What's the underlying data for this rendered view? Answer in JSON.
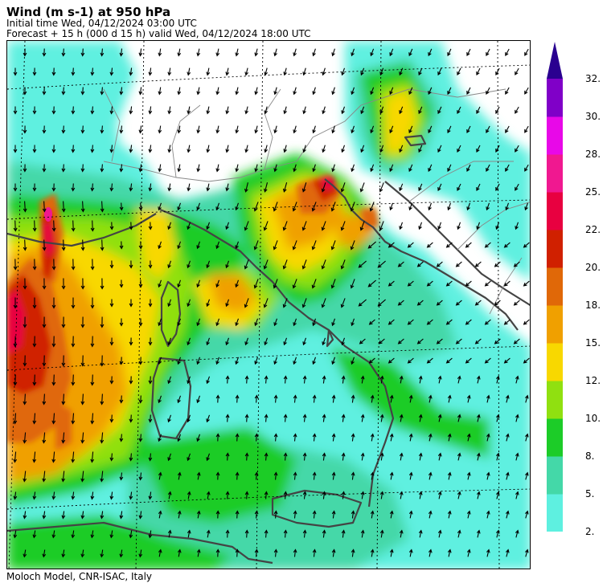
{
  "header": {
    "title": "Wind (m s-1) at 950 hPa",
    "initial_time": "Initial time  Wed, 04/12/2024  03:00 UTC",
    "forecast": "Forecast  +  15 h  (000 d 15 h)  valid Wed, 04/12/2024 18:00 UTC"
  },
  "footer": "Moloch Model, CNR-ISAC, Italy",
  "colorbar": {
    "levels": [
      "2.",
      "5.",
      "8.",
      "10.",
      "12.",
      "15.",
      "18.",
      "20.",
      "22.",
      "25.",
      "28.",
      "30.",
      "32."
    ],
    "colors": [
      "#5ef0e0",
      "#44d8a8",
      "#1ccc28",
      "#90e010",
      "#f8d800",
      "#f0a000",
      "#e06808",
      "#d02000",
      "#e80040",
      "#f01890",
      "#e808e8",
      "#8000c8",
      "#2a0090"
    ],
    "arrow_color": "#2a0090"
  },
  "map": {
    "land_outline_color": "#444444",
    "border_color": "#888888",
    "vector_color": "#000000"
  }
}
